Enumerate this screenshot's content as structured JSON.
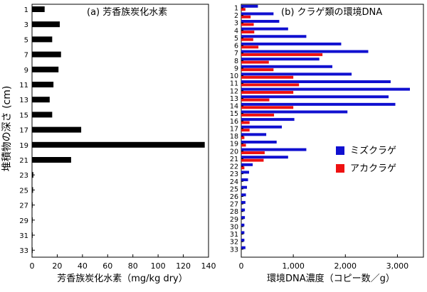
{
  "figure": {
    "shared_ylabel": "堆積物の深さ (cm)"
  },
  "chart_data": [
    {
      "type": "bar",
      "orientation": "horizontal",
      "title": "(a) 芳香族炭化水素",
      "xlabel": "芳香族炭化水素（mg/kg dry）",
      "ylabel": "堆積物の深さ (cm)",
      "xlim": [
        0,
        140
      ],
      "ylim": [
        1,
        33
      ],
      "x_ticks": [
        "0",
        "20",
        "40",
        "60",
        "80",
        "100",
        "120",
        "140"
      ],
      "depth_tick_labels": [
        "1",
        "3",
        "5",
        "7",
        "9",
        "11",
        "13",
        "15",
        "17",
        "19",
        "21",
        "23",
        "25",
        "27",
        "29",
        "31",
        "33"
      ],
      "depths": [
        1,
        3,
        5,
        7,
        9,
        11,
        13,
        15,
        17,
        19,
        21,
        23,
        25,
        27,
        29,
        31,
        33
      ],
      "values": [
        10,
        22,
        16,
        23,
        21,
        17,
        14,
        16,
        39,
        137,
        31,
        1,
        0.8,
        0.5,
        0.5,
        0.5,
        0.5
      ]
    },
    {
      "type": "bar",
      "orientation": "horizontal",
      "title": "(b) クラゲ類の環境DNA",
      "xlabel": "環境DNA濃度（コピー数／g）",
      "ylabel": "",
      "xlim": [
        0,
        3500
      ],
      "x_ticks": [
        "0",
        "1,000",
        "2,000",
        "3,000"
      ],
      "depth_tick_labels": [
        "1",
        "2",
        "3",
        "4",
        "5",
        "6",
        "7",
        "8",
        "9",
        "10",
        "11",
        "12",
        "13",
        "14",
        "15",
        "16",
        "17",
        "18",
        "19",
        "20",
        "21",
        "22",
        "23",
        "24",
        "25",
        "26",
        "27",
        "28",
        "29",
        "30",
        "31",
        "32",
        "33"
      ],
      "depths": [
        1,
        2,
        3,
        4,
        5,
        6,
        7,
        8,
        9,
        10,
        11,
        12,
        13,
        14,
        15,
        16,
        17,
        18,
        19,
        20,
        21,
        22,
        23,
        24,
        25,
        26,
        27,
        28,
        29,
        30,
        31,
        32,
        33
      ],
      "legend_position": "center-right",
      "series": [
        {
          "name": "ミズクラゲ",
          "color": "#1010d0",
          "values": [
            320,
            620,
            730,
            900,
            1250,
            1920,
            2440,
            1500,
            1750,
            2120,
            2870,
            3240,
            2830,
            2960,
            2040,
            1020,
            780,
            480,
            680,
            1250,
            900,
            220,
            150,
            130,
            110,
            90,
            80,
            70,
            70,
            60,
            60,
            60,
            80
          ]
        },
        {
          "name": "アカクラゲ",
          "color": "#ee1111",
          "values": [
            80,
            180,
            240,
            250,
            230,
            330,
            1560,
            530,
            620,
            1000,
            1110,
            1000,
            540,
            1000,
            630,
            160,
            160,
            60,
            90,
            450,
            430,
            60,
            0,
            0,
            0,
            0,
            0,
            0,
            0,
            0,
            0,
            0,
            0
          ]
        }
      ]
    }
  ]
}
